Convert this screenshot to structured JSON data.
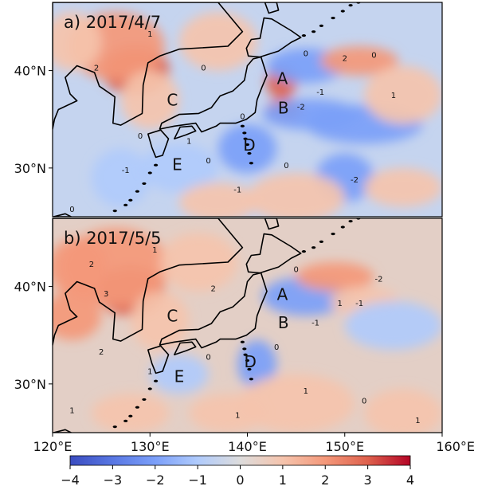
{
  "panels": [
    {
      "title": "a) 2017/4/7",
      "regions": [
        {
          "name": "A",
          "lon": 143.6,
          "lat": 38.6
        },
        {
          "name": "B",
          "lon": 143.7,
          "lat": 35.6
        },
        {
          "name": "C",
          "lon": 132.3,
          "lat": 36.4
        },
        {
          "name": "D",
          "lon": 140.2,
          "lat": 31.8
        },
        {
          "name": "E",
          "lon": 132.8,
          "lat": 29.8
        }
      ],
      "blobs": [
        {
          "lon": 128.5,
          "lat": 40.0,
          "rlon": 3.5,
          "rlat": 2.5,
          "v": 3.0
        },
        {
          "lon": 126.5,
          "lat": 42.5,
          "rlon": 5.0,
          "rlat": 3.5,
          "v": 1.8
        },
        {
          "lon": 122.0,
          "lat": 43.0,
          "rlon": 3.0,
          "rlat": 3.0,
          "v": 1.2
        },
        {
          "lon": 130.0,
          "lat": 37.0,
          "rlon": 3.0,
          "rlat": 3.0,
          "v": 1.0
        },
        {
          "lon": 137.0,
          "lat": 43.0,
          "rlon": 4.0,
          "rlat": 3.0,
          "v": 1.2
        },
        {
          "lon": 143.5,
          "lat": 38.8,
          "rlon": 1.6,
          "rlat": 1.6,
          "v": 3.0
        },
        {
          "lon": 143.8,
          "lat": 36.0,
          "rlon": 1.8,
          "rlat": 1.2,
          "v": 3.2
        },
        {
          "lon": 146.5,
          "lat": 35.5,
          "rlon": 5.0,
          "rlat": 1.6,
          "v": -2.2
        },
        {
          "lon": 152.0,
          "lat": 34.5,
          "rlon": 6.0,
          "rlat": 2.0,
          "v": -2.0
        },
        {
          "lon": 146.0,
          "lat": 40.5,
          "rlon": 4.0,
          "rlat": 1.8,
          "v": -2.0
        },
        {
          "lon": 151.5,
          "lat": 41.0,
          "rlon": 4.0,
          "rlat": 1.5,
          "v": 1.8
        },
        {
          "lon": 156.0,
          "lat": 37.5,
          "rlon": 4.0,
          "rlat": 3.0,
          "v": 1.0
        },
        {
          "lon": 140.0,
          "lat": 32.0,
          "rlon": 3.0,
          "rlat": 2.5,
          "v": -1.8
        },
        {
          "lon": 133.0,
          "lat": 30.0,
          "rlon": 4.0,
          "rlat": 2.5,
          "v": -1.0
        },
        {
          "lon": 127.0,
          "lat": 29.0,
          "rlon": 3.0,
          "rlat": 3.0,
          "v": -1.0
        },
        {
          "lon": 150.0,
          "lat": 29.0,
          "rlon": 3.0,
          "rlat": 2.5,
          "v": -1.6
        },
        {
          "lon": 145.0,
          "lat": 27.0,
          "rlon": 5.0,
          "rlat": 2.5,
          "v": 0.6
        },
        {
          "lon": 156.0,
          "lat": 28.0,
          "rlon": 4.0,
          "rlat": 2.0,
          "v": 0.9
        },
        {
          "lon": 137.0,
          "lat": 26.5,
          "rlon": 4.0,
          "rlat": 2.0,
          "v": 0.8
        }
      ],
      "labels": [
        {
          "lon": 124.5,
          "lat": 40.0,
          "v": "2"
        },
        {
          "lon": 130.0,
          "lat": 43.5,
          "v": "1"
        },
        {
          "lon": 135.5,
          "lat": 40.0,
          "v": "0"
        },
        {
          "lon": 146.0,
          "lat": 41.5,
          "v": "0"
        },
        {
          "lon": 147.5,
          "lat": 37.5,
          "v": "-1"
        },
        {
          "lon": 150.0,
          "lat": 41.0,
          "v": "2"
        },
        {
          "lon": 153.0,
          "lat": 41.3,
          "v": "0"
        },
        {
          "lon": 155.0,
          "lat": 37.2,
          "v": "1"
        },
        {
          "lon": 145.5,
          "lat": 36.0,
          "v": "-2"
        },
        {
          "lon": 139.5,
          "lat": 35.0,
          "v": "0"
        },
        {
          "lon": 134.0,
          "lat": 32.5,
          "v": "1"
        },
        {
          "lon": 129.0,
          "lat": 33.0,
          "v": "0"
        },
        {
          "lon": 127.5,
          "lat": 29.5,
          "v": "-1"
        },
        {
          "lon": 144.0,
          "lat": 30.0,
          "v": "0"
        },
        {
          "lon": 139.0,
          "lat": 27.5,
          "v": "-1"
        },
        {
          "lon": 151.0,
          "lat": 28.5,
          "v": "-2"
        },
        {
          "lon": 122.0,
          "lat": 25.5,
          "v": "0"
        },
        {
          "lon": 136.0,
          "lat": 30.5,
          "v": "0"
        }
      ]
    },
    {
      "title": "b) 2017/5/5",
      "regions": [
        {
          "name": "A",
          "lon": 143.6,
          "lat": 38.6
        },
        {
          "name": "B",
          "lon": 143.7,
          "lat": 35.7
        },
        {
          "name": "C",
          "lon": 132.3,
          "lat": 36.4
        },
        {
          "name": "D",
          "lon": 140.3,
          "lat": 31.7
        },
        {
          "name": "E",
          "lon": 133.0,
          "lat": 30.2
        }
      ],
      "blobs": [
        {
          "lon": 128.0,
          "lat": 39.5,
          "rlon": 3.5,
          "rlat": 2.5,
          "v": 3.2
        },
        {
          "lon": 126.5,
          "lat": 42.0,
          "rlon": 5.5,
          "rlat": 4.0,
          "v": 2.0
        },
        {
          "lon": 122.0,
          "lat": 37.0,
          "rlon": 3.0,
          "rlat": 2.5,
          "v": 2.2
        },
        {
          "lon": 122.5,
          "lat": 42.0,
          "rlon": 3.0,
          "rlat": 3.0,
          "v": 1.5
        },
        {
          "lon": 131.0,
          "lat": 36.5,
          "rlon": 3.0,
          "rlat": 3.0,
          "v": 1.3
        },
        {
          "lon": 135.0,
          "lat": 42.5,
          "rlon": 4.0,
          "rlat": 3.0,
          "v": 1.2
        },
        {
          "lon": 146.0,
          "lat": 39.0,
          "rlon": 4.5,
          "rlat": 2.0,
          "v": -1.8
        },
        {
          "lon": 149.0,
          "lat": 41.0,
          "rlon": 4.0,
          "rlat": 1.5,
          "v": 1.6
        },
        {
          "lon": 152.0,
          "lat": 38.5,
          "rlon": 3.5,
          "rlat": 1.5,
          "v": 1.4
        },
        {
          "lon": 155.0,
          "lat": 36.0,
          "rlon": 5.0,
          "rlat": 2.5,
          "v": -1.2
        },
        {
          "lon": 141.0,
          "lat": 32.0,
          "rlon": 2.0,
          "rlat": 2.5,
          "v": -2.0
        },
        {
          "lon": 133.0,
          "lat": 31.0,
          "rlon": 3.0,
          "rlat": 2.0,
          "v": -1.2
        },
        {
          "lon": 145.0,
          "lat": 28.0,
          "rlon": 6.0,
          "rlat": 3.0,
          "v": 1.2
        },
        {
          "lon": 156.0,
          "lat": 27.0,
          "rlon": 4.0,
          "rlat": 2.5,
          "v": 1.4
        },
        {
          "lon": 138.0,
          "lat": 27.0,
          "rlon": 4.0,
          "rlat": 2.0,
          "v": 1.0
        },
        {
          "lon": 128.0,
          "lat": 27.0,
          "rlon": 4.0,
          "rlat": 2.0,
          "v": 0.8
        }
      ],
      "labels": [
        {
          "lon": 125.5,
          "lat": 39.0,
          "v": "3"
        },
        {
          "lon": 124.0,
          "lat": 42.0,
          "v": "2"
        },
        {
          "lon": 130.5,
          "lat": 43.5,
          "v": "1"
        },
        {
          "lon": 136.5,
          "lat": 39.5,
          "v": "2"
        },
        {
          "lon": 145.0,
          "lat": 41.5,
          "v": "0"
        },
        {
          "lon": 149.5,
          "lat": 38.0,
          "v": "1"
        },
        {
          "lon": 151.5,
          "lat": 38.0,
          "v": "-1"
        },
        {
          "lon": 153.5,
          "lat": 40.5,
          "v": "-2"
        },
        {
          "lon": 147.0,
          "lat": 36.0,
          "v": "-1"
        },
        {
          "lon": 143.0,
          "lat": 33.5,
          "v": "0"
        },
        {
          "lon": 130.0,
          "lat": 31.0,
          "v": "1"
        },
        {
          "lon": 136.0,
          "lat": 32.5,
          "v": "0"
        },
        {
          "lon": 146.0,
          "lat": 29.0,
          "v": "1"
        },
        {
          "lon": 152.0,
          "lat": 28.0,
          "v": "0"
        },
        {
          "lon": 139.0,
          "lat": 26.5,
          "v": "1"
        },
        {
          "lon": 157.5,
          "lat": 26.0,
          "v": "1"
        },
        {
          "lon": 122.0,
          "lat": 27.0,
          "v": "1"
        },
        {
          "lon": 125.0,
          "lat": 33.0,
          "v": "2"
        }
      ]
    }
  ],
  "axes": {
    "lon_ticks": [
      "120°E",
      "130°E",
      "140°E",
      "150°E",
      "160°E"
    ],
    "lat_ticks": [
      "40°N",
      "30°N"
    ],
    "lon_range": [
      120,
      160
    ],
    "lat_range": [
      25,
      47
    ]
  },
  "colorbar": {
    "ticks": [
      "−4",
      "−3",
      "−2",
      "−1",
      "0",
      "1",
      "2",
      "3",
      "4"
    ],
    "range": [
      -4,
      4
    ],
    "colors": [
      "#3a4cc0",
      "#5977e3",
      "#7b9ff9",
      "#b0cbfc",
      "#dddcdc",
      "#f5c4ad",
      "#f4987a",
      "#de614d",
      "#b40426"
    ]
  }
}
